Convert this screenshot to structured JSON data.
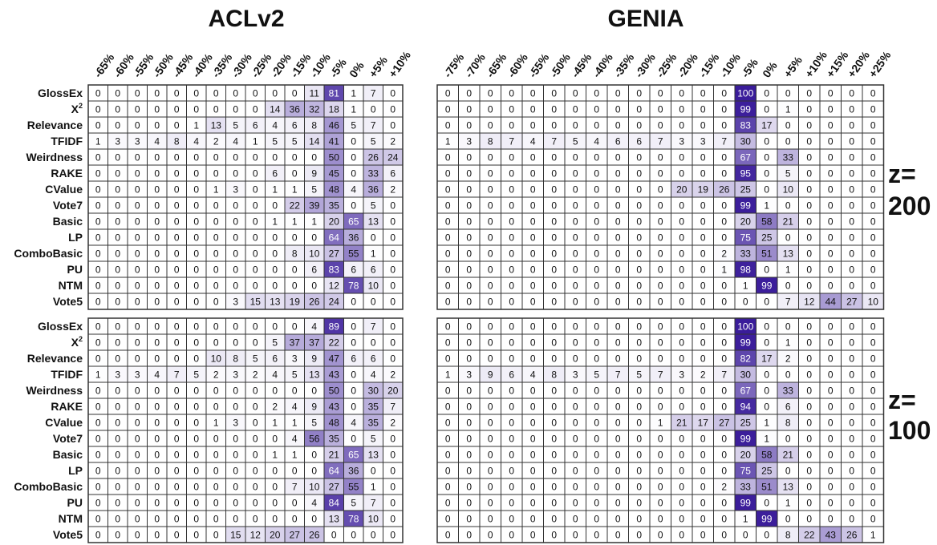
{
  "chart_data": {
    "type": "heatmap",
    "titles": [
      "ACLv2",
      "GENIA"
    ],
    "rows": [
      "GlossEx",
      "X²",
      "Relevance",
      "TFIDF",
      "Weirdness",
      "RAKE",
      "CValue",
      "Vote7",
      "Basic",
      "LP",
      "ComboBasic",
      "PU",
      "NTM",
      "Vote5"
    ],
    "columns": {
      "ACLv2": [
        "-65%",
        "-60%",
        "-55%",
        "-50%",
        "-45%",
        "-40%",
        "-35%",
        "-30%",
        "-25%",
        "-20%",
        "-15%",
        "-10%",
        "-5%",
        "0%",
        "+5%",
        "+10%"
      ],
      "GENIA": [
        "-75%",
        "-70%",
        "-65%",
        "-60%",
        "-55%",
        "-50%",
        "-45%",
        "-40%",
        "-35%",
        "-30%",
        "-25%",
        "-20%",
        "-15%",
        "-10%",
        "-5%",
        "0%",
        "+5%",
        "+10%",
        "+15%",
        "+20%",
        "+25%"
      ]
    },
    "panels": [
      {
        "dataset": "ACLv2",
        "z_label": "z=\n200",
        "values": [
          [
            0,
            0,
            0,
            0,
            0,
            0,
            0,
            0,
            0,
            0,
            0,
            11,
            81,
            1,
            7,
            0
          ],
          [
            0,
            0,
            0,
            0,
            0,
            0,
            0,
            0,
            0,
            14,
            36,
            32,
            18,
            1,
            0,
            0
          ],
          [
            0,
            0,
            0,
            0,
            0,
            1,
            13,
            5,
            6,
            4,
            6,
            8,
            46,
            5,
            7,
            0
          ],
          [
            1,
            3,
            3,
            4,
            8,
            4,
            2,
            4,
            1,
            5,
            5,
            14,
            41,
            0,
            5,
            2
          ],
          [
            0,
            0,
            0,
            0,
            0,
            0,
            0,
            0,
            0,
            0,
            0,
            0,
            50,
            0,
            26,
            24
          ],
          [
            0,
            0,
            0,
            0,
            0,
            0,
            0,
            0,
            0,
            6,
            0,
            9,
            45,
            0,
            33,
            6
          ],
          [
            0,
            0,
            0,
            0,
            0,
            0,
            1,
            3,
            0,
            1,
            1,
            5,
            48,
            4,
            36,
            2
          ],
          [
            0,
            0,
            0,
            0,
            0,
            0,
            0,
            0,
            0,
            0,
            22,
            39,
            35,
            0,
            5,
            0
          ],
          [
            0,
            0,
            0,
            0,
            0,
            0,
            0,
            0,
            0,
            1,
            1,
            1,
            20,
            65,
            13,
            0
          ],
          [
            0,
            0,
            0,
            0,
            0,
            0,
            0,
            0,
            0,
            0,
            0,
            0,
            64,
            36,
            0,
            0
          ],
          [
            0,
            0,
            0,
            0,
            0,
            0,
            0,
            0,
            0,
            0,
            8,
            10,
            27,
            55,
            1,
            0
          ],
          [
            0,
            0,
            0,
            0,
            0,
            0,
            0,
            0,
            0,
            0,
            0,
            6,
            83,
            6,
            6,
            0
          ],
          [
            0,
            0,
            0,
            0,
            0,
            0,
            0,
            0,
            0,
            0,
            0,
            0,
            12,
            78,
            10,
            0
          ],
          [
            0,
            0,
            0,
            0,
            0,
            0,
            0,
            3,
            15,
            13,
            19,
            26,
            24,
            0,
            0,
            0
          ]
        ]
      },
      {
        "dataset": "GENIA",
        "z_label": "z=\n200",
        "values": [
          [
            0,
            0,
            0,
            0,
            0,
            0,
            0,
            0,
            0,
            0,
            0,
            0,
            0,
            0,
            100,
            0,
            0,
            0,
            0,
            0,
            0
          ],
          [
            0,
            0,
            0,
            0,
            0,
            0,
            0,
            0,
            0,
            0,
            0,
            0,
            0,
            0,
            99,
            0,
            1,
            0,
            0,
            0,
            0
          ],
          [
            0,
            0,
            0,
            0,
            0,
            0,
            0,
            0,
            0,
            0,
            0,
            0,
            0,
            0,
            83,
            17,
            0,
            0,
            0,
            0,
            0
          ],
          [
            1,
            3,
            8,
            7,
            4,
            7,
            5,
            4,
            6,
            6,
            7,
            3,
            3,
            7,
            30,
            0,
            0,
            0,
            0,
            0,
            0
          ],
          [
            0,
            0,
            0,
            0,
            0,
            0,
            0,
            0,
            0,
            0,
            0,
            0,
            0,
            0,
            67,
            0,
            33,
            0,
            0,
            0,
            0
          ],
          [
            0,
            0,
            0,
            0,
            0,
            0,
            0,
            0,
            0,
            0,
            0,
            0,
            0,
            0,
            95,
            0,
            5,
            0,
            0,
            0,
            0
          ],
          [
            0,
            0,
            0,
            0,
            0,
            0,
            0,
            0,
            0,
            0,
            0,
            20,
            19,
            26,
            25,
            0,
            10,
            0,
            0,
            0,
            0
          ],
          [
            0,
            0,
            0,
            0,
            0,
            0,
            0,
            0,
            0,
            0,
            0,
            0,
            0,
            0,
            99,
            1,
            0,
            0,
            0,
            0,
            0
          ],
          [
            0,
            0,
            0,
            0,
            0,
            0,
            0,
            0,
            0,
            0,
            0,
            0,
            0,
            0,
            20,
            58,
            21,
            0,
            0,
            0,
            0
          ],
          [
            0,
            0,
            0,
            0,
            0,
            0,
            0,
            0,
            0,
            0,
            0,
            0,
            0,
            0,
            75,
            25,
            0,
            0,
            0,
            0,
            0
          ],
          [
            0,
            0,
            0,
            0,
            0,
            0,
            0,
            0,
            0,
            0,
            0,
            0,
            0,
            2,
            33,
            51,
            13,
            0,
            0,
            0,
            0
          ],
          [
            0,
            0,
            0,
            0,
            0,
            0,
            0,
            0,
            0,
            0,
            0,
            0,
            0,
            1,
            98,
            0,
            1,
            0,
            0,
            0,
            0
          ],
          [
            0,
            0,
            0,
            0,
            0,
            0,
            0,
            0,
            0,
            0,
            0,
            0,
            0,
            0,
            1,
            99,
            0,
            0,
            0,
            0,
            0
          ],
          [
            0,
            0,
            0,
            0,
            0,
            0,
            0,
            0,
            0,
            0,
            0,
            0,
            0,
            0,
            0,
            0,
            7,
            12,
            44,
            27,
            10
          ]
        ]
      },
      {
        "dataset": "ACLv2",
        "z_label": "z=\n100",
        "values": [
          [
            0,
            0,
            0,
            0,
            0,
            0,
            0,
            0,
            0,
            0,
            0,
            4,
            89,
            0,
            7,
            0
          ],
          [
            0,
            0,
            0,
            0,
            0,
            0,
            0,
            0,
            0,
            5,
            37,
            37,
            22,
            0,
            0,
            0
          ],
          [
            0,
            0,
            0,
            0,
            0,
            0,
            10,
            8,
            5,
            6,
            3,
            9,
            47,
            6,
            6,
            0
          ],
          [
            1,
            3,
            3,
            4,
            7,
            5,
            2,
            3,
            2,
            4,
            5,
            13,
            43,
            0,
            4,
            2
          ],
          [
            0,
            0,
            0,
            0,
            0,
            0,
            0,
            0,
            0,
            0,
            0,
            0,
            50,
            0,
            30,
            20
          ],
          [
            0,
            0,
            0,
            0,
            0,
            0,
            0,
            0,
            0,
            2,
            4,
            9,
            43,
            0,
            35,
            7
          ],
          [
            0,
            0,
            0,
            0,
            0,
            0,
            1,
            3,
            0,
            1,
            1,
            5,
            48,
            4,
            35,
            2
          ],
          [
            0,
            0,
            0,
            0,
            0,
            0,
            0,
            0,
            0,
            0,
            4,
            56,
            35,
            0,
            5,
            0
          ],
          [
            0,
            0,
            0,
            0,
            0,
            0,
            0,
            0,
            0,
            1,
            1,
            0,
            21,
            65,
            13,
            0
          ],
          [
            0,
            0,
            0,
            0,
            0,
            0,
            0,
            0,
            0,
            0,
            0,
            0,
            64,
            36,
            0,
            0
          ],
          [
            0,
            0,
            0,
            0,
            0,
            0,
            0,
            0,
            0,
            0,
            7,
            10,
            27,
            55,
            1,
            0
          ],
          [
            0,
            0,
            0,
            0,
            0,
            0,
            0,
            0,
            0,
            0,
            0,
            4,
            84,
            5,
            7,
            0
          ],
          [
            0,
            0,
            0,
            0,
            0,
            0,
            0,
            0,
            0,
            0,
            0,
            0,
            13,
            78,
            10,
            0
          ],
          [
            0,
            0,
            0,
            0,
            0,
            0,
            0,
            15,
            12,
            20,
            27,
            26,
            0,
            0,
            0,
            0
          ]
        ]
      },
      {
        "dataset": "GENIA",
        "z_label": "z=\n100",
        "values": [
          [
            0,
            0,
            0,
            0,
            0,
            0,
            0,
            0,
            0,
            0,
            0,
            0,
            0,
            0,
            100,
            0,
            0,
            0,
            0,
            0,
            0
          ],
          [
            0,
            0,
            0,
            0,
            0,
            0,
            0,
            0,
            0,
            0,
            0,
            0,
            0,
            0,
            99,
            0,
            1,
            0,
            0,
            0,
            0
          ],
          [
            0,
            0,
            0,
            0,
            0,
            0,
            0,
            0,
            0,
            0,
            0,
            0,
            0,
            0,
            82,
            17,
            2,
            0,
            0,
            0,
            0
          ],
          [
            1,
            3,
            9,
            6,
            4,
            8,
            3,
            5,
            7,
            5,
            7,
            3,
            2,
            7,
            30,
            0,
            0,
            0,
            0,
            0,
            0
          ],
          [
            0,
            0,
            0,
            0,
            0,
            0,
            0,
            0,
            0,
            0,
            0,
            0,
            0,
            0,
            67,
            0,
            33,
            0,
            0,
            0,
            0
          ],
          [
            0,
            0,
            0,
            0,
            0,
            0,
            0,
            0,
            0,
            0,
            0,
            0,
            0,
            0,
            94,
            0,
            6,
            0,
            0,
            0,
            0
          ],
          [
            0,
            0,
            0,
            0,
            0,
            0,
            0,
            0,
            0,
            0,
            1,
            21,
            17,
            27,
            25,
            1,
            8,
            0,
            0,
            0,
            0
          ],
          [
            0,
            0,
            0,
            0,
            0,
            0,
            0,
            0,
            0,
            0,
            0,
            0,
            0,
            0,
            99,
            1,
            0,
            0,
            0,
            0,
            0
          ],
          [
            0,
            0,
            0,
            0,
            0,
            0,
            0,
            0,
            0,
            0,
            0,
            0,
            0,
            0,
            20,
            58,
            21,
            0,
            0,
            0,
            0
          ],
          [
            0,
            0,
            0,
            0,
            0,
            0,
            0,
            0,
            0,
            0,
            0,
            0,
            0,
            0,
            75,
            25,
            0,
            0,
            0,
            0,
            0
          ],
          [
            0,
            0,
            0,
            0,
            0,
            0,
            0,
            0,
            0,
            0,
            0,
            0,
            0,
            2,
            33,
            51,
            13,
            0,
            0,
            0,
            0
          ],
          [
            0,
            0,
            0,
            0,
            0,
            0,
            0,
            0,
            0,
            0,
            0,
            0,
            0,
            0,
            99,
            0,
            1,
            0,
            0,
            0,
            0
          ],
          [
            0,
            0,
            0,
            0,
            0,
            0,
            0,
            0,
            0,
            0,
            0,
            0,
            0,
            0,
            1,
            99,
            0,
            0,
            0,
            0,
            0
          ],
          [
            0,
            0,
            0,
            0,
            0,
            0,
            0,
            0,
            0,
            0,
            0,
            0,
            0,
            0,
            0,
            0,
            8,
            22,
            43,
            26,
            1
          ]
        ]
      }
    ],
    "colors": {
      "low": "#ffffff",
      "high": "#3a1c9a",
      "grid": "#333333",
      "text_dark": "#111111",
      "text_light": "#ffffff"
    }
  }
}
